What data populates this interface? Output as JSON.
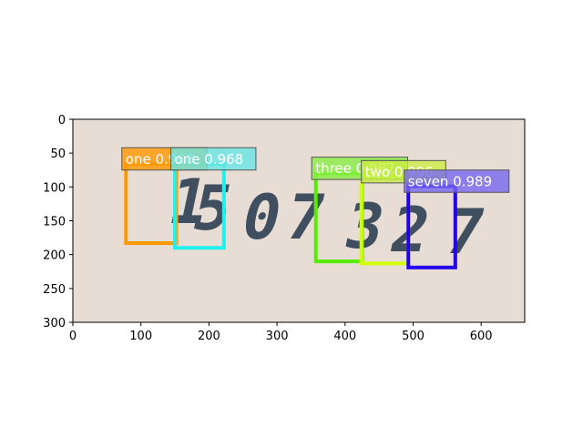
{
  "axes": {
    "x_ticks": [
      0,
      100,
      200,
      300,
      400,
      500,
      600
    ],
    "y_ticks": [
      0,
      50,
      100,
      150,
      200,
      250,
      300
    ],
    "xlim": [
      0,
      664
    ],
    "ylim": [
      300,
      0
    ],
    "y_inverted": true
  },
  "image": {
    "background_color": "#e8ddd5",
    "digits": [
      "1",
      "5",
      "0",
      "7",
      "3",
      "2",
      "7"
    ]
  },
  "detections": [
    {
      "label": "one 0.968",
      "color": "#ff9900",
      "box_color": "#ff9900",
      "x0": 78,
      "y0": 66,
      "x1": 152,
      "y1": 183
    },
    {
      "label": "one 0.968",
      "color": "#66e6e6",
      "box_color": "#22f0ee",
      "x0": 150,
      "y0": 66,
      "x1": 222,
      "y1": 190
    },
    {
      "label": "three 0.987",
      "color": "#88ee44",
      "box_color": "#55ee00",
      "x0": 357,
      "y0": 80,
      "x1": 425,
      "y1": 210
    },
    {
      "label": "two 0.996",
      "color": "#ccee44",
      "box_color": "#d4ff00",
      "x0": 424,
      "y0": 84,
      "x1": 493,
      "y1": 213
    },
    {
      "label": "seven 0.989",
      "color": "#7766ee",
      "box_color": "#2200ee",
      "x0": 493,
      "y0": 99,
      "x1": 562,
      "y1": 219
    }
  ],
  "label_boxes": [
    {
      "text": "one 0.968",
      "x0": 72,
      "y0": 42,
      "x1": 197,
      "y1": 75
    },
    {
      "text": "one 0.968",
      "x0": 144,
      "y0": 42,
      "x1": 269,
      "y1": 75
    },
    {
      "text": "three 0.987",
      "x0": 351,
      "y0": 56,
      "x1": 492,
      "y1": 89
    },
    {
      "text": "two 0.996",
      "x0": 424,
      "y0": 61,
      "x1": 548,
      "y1": 94
    },
    {
      "text": "seven 0.989",
      "x0": 487,
      "y0": 75,
      "x1": 641,
      "y1": 108
    }
  ]
}
